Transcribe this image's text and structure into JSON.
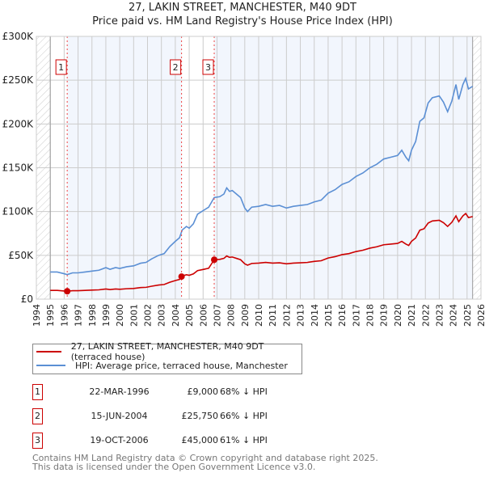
{
  "header": {
    "title": "27, LAKIN STREET, MANCHESTER, M40 9DT",
    "subtitle": "Price paid vs. HM Land Registry's House Price Index (HPI)"
  },
  "chart_data": {
    "type": "line",
    "title": "27, LAKIN STREET, MANCHESTER, M40 9DT",
    "subtitle": "Price paid vs. HM Land Registry's House Price Index (HPI)",
    "xlim": [
      1994,
      2026
    ],
    "ylim": [
      0,
      300000
    ],
    "x_ticks": [
      "1994",
      "1995",
      "1996",
      "1997",
      "1998",
      "1999",
      "2000",
      "2001",
      "2002",
      "2003",
      "2004",
      "2005",
      "2006",
      "2007",
      "2008",
      "2009",
      "2010",
      "2011",
      "2012",
      "2013",
      "2014",
      "2015",
      "2016",
      "2017",
      "2018",
      "2019",
      "2020",
      "2021",
      "2022",
      "2023",
      "2024",
      "2025",
      "2026"
    ],
    "y_ticks": [
      {
        "v": 0,
        "label": "£0"
      },
      {
        "v": 50000,
        "label": "£50K"
      },
      {
        "v": 100000,
        "label": "£100K"
      },
      {
        "v": 150000,
        "label": "£150K"
      },
      {
        "v": 200000,
        "label": "£200K"
      },
      {
        "v": 250000,
        "label": "£250K"
      },
      {
        "v": 300000,
        "label": "£300K"
      }
    ],
    "grid": true,
    "data_range": [
      1995,
      2025.4
    ],
    "colors": {
      "property": "#cc0000",
      "hpi": "#5b8fd4",
      "shade": "#f2f6fd",
      "marker": "#ee4444"
    },
    "series": [
      {
        "name": "HPI: Average price, terraced house, Manchester",
        "x": [
          1995,
          1995.5,
          1996,
          1996.22,
          1996.6,
          1997,
          1997.5,
          1998,
          1998.5,
          1999,
          1999.3,
          1999.7,
          2000,
          2000.5,
          2001,
          2001.5,
          2001.9,
          2002.3,
          2002.8,
          2003.2,
          2003.6,
          2004,
          2004.3,
          2004.5,
          2004.8,
          2005,
          2005.3,
          2005.6,
          2006,
          2006.4,
          2006.8,
          2007.2,
          2007.5,
          2007.7,
          2007.9,
          2008.1,
          2008.4,
          2008.7,
          2009.0,
          2009.2,
          2009.5,
          2010,
          2010.5,
          2011,
          2011.5,
          2012,
          2012.5,
          2013,
          2013.5,
          2014,
          2014.5,
          2015,
          2015.5,
          2016,
          2016.5,
          2017,
          2017.5,
          2018,
          2018.5,
          2019,
          2019.5,
          2020,
          2020.3,
          2020.6,
          2020.8,
          2021.0,
          2021.3,
          2021.6,
          2021.9,
          2022.2,
          2022.5,
          2023.0,
          2023.3,
          2023.6,
          2023.9,
          2024.2,
          2024.4,
          2024.7,
          2024.9,
          2025.1,
          2025.4
        ],
        "values": [
          31000,
          31000,
          29000,
          28000,
          30000,
          30000,
          31000,
          32000,
          33000,
          36000,
          34000,
          36000,
          35000,
          37000,
          38000,
          41000,
          42000,
          46000,
          50000,
          52000,
          60000,
          66000,
          70000,
          79000,
          83000,
          81000,
          86000,
          97000,
          101000,
          105000,
          116000,
          117000,
          120000,
          127000,
          123000,
          124000,
          120000,
          116000,
          104000,
          100000,
          105000,
          106000,
          108000,
          106000,
          107000,
          104000,
          106000,
          107000,
          108000,
          111000,
          113000,
          121000,
          125000,
          131000,
          134000,
          140000,
          144000,
          150000,
          154000,
          160000,
          162000,
          164000,
          170000,
          162000,
          158000,
          170000,
          180000,
          203000,
          207000,
          224000,
          230000,
          232000,
          225000,
          214000,
          226000,
          245000,
          228000,
          245000,
          252000,
          240000,
          243000
        ]
      },
      {
        "name": "27, LAKIN STREET, MANCHESTER, M40 9DT (terraced house)",
        "derived_from": "HPI indexed from latest sale"
      }
    ],
    "sales": [
      {
        "id": "1",
        "x": 1996.22,
        "price": 9000,
        "date": "22-MAR-1996",
        "price_label": "£9,000",
        "hpi_diff": "68% ↓ HPI"
      },
      {
        "id": "2",
        "x": 2004.45,
        "price": 25750,
        "date": "15-JUN-2004",
        "price_label": "£25,750",
        "hpi_diff": "66% ↓ HPI"
      },
      {
        "id": "3",
        "x": 2006.8,
        "price": 45000,
        "date": "19-OCT-2006",
        "price_label": "£45,000",
        "hpi_diff": "61% ↓ HPI"
      }
    ]
  },
  "legend": {
    "property": "27, LAKIN STREET, MANCHESTER, M40 9DT (terraced house)",
    "hpi": "HPI: Average price, terraced house, Manchester"
  },
  "footer": {
    "line1": "Contains HM Land Registry data © Crown copyright and database right 2025.",
    "line2": "This data is licensed under the Open Government Licence v3.0."
  }
}
